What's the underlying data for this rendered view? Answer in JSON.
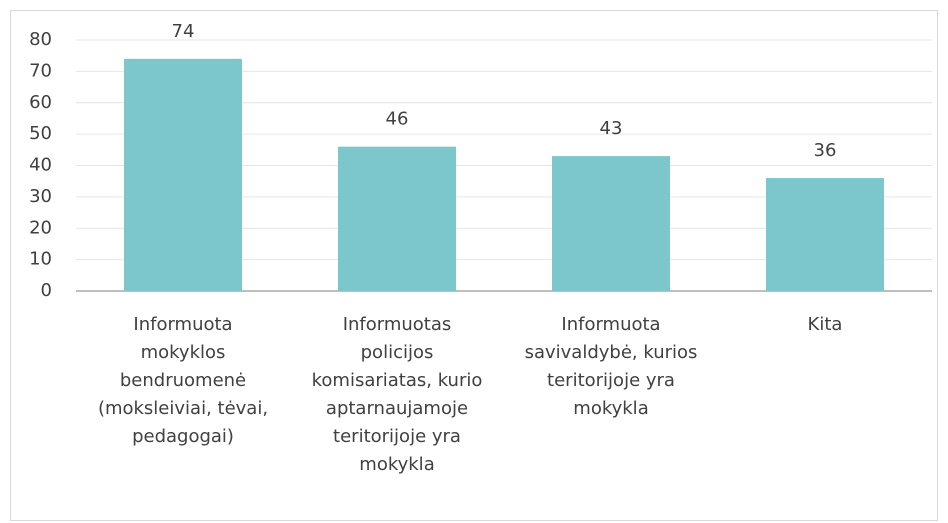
{
  "chart_data": {
    "type": "bar",
    "categories": [
      "Informuota mokyklos bendruomenė (moksleiviai, tėvai, pedagogai)",
      "Informuotas policijos komisariatas, kurio aptarnaujamoje teritorijoje yra mokykla",
      "Informuota savivaldybė, kurios teritorijoje yra mokykla",
      "Kita"
    ],
    "values": [
      74,
      46,
      43,
      36
    ],
    "color": "#7cc7cc",
    "ylim": [
      0,
      80
    ],
    "yticks": [
      0,
      10,
      20,
      30,
      40,
      50,
      60,
      70,
      80
    ],
    "grid": true
  }
}
